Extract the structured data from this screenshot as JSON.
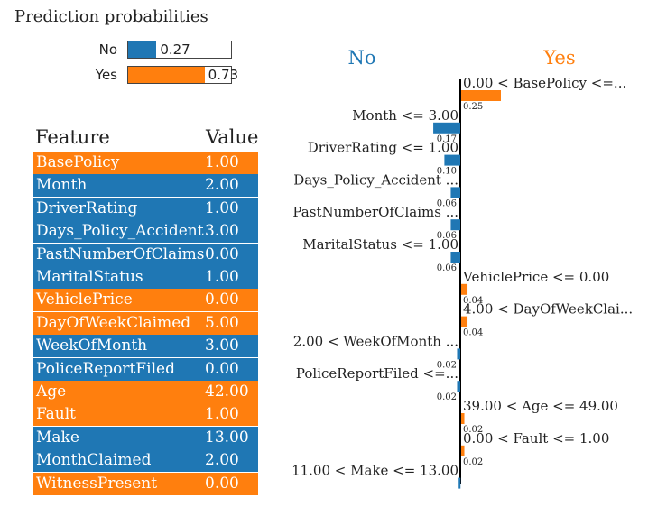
{
  "title": "Prediction probabilities",
  "colors": {
    "no": "#1f77b4",
    "yes": "#ff7f0e"
  },
  "probabilities": [
    {
      "label": "No",
      "value": 0.27,
      "display": "0.27",
      "color": "#1f77b4"
    },
    {
      "label": "Yes",
      "value": 0.73,
      "display": "0.73",
      "color": "#ff7f0e"
    }
  ],
  "explanation": {
    "left_class": "No",
    "right_class": "Yes"
  },
  "chart_data": {
    "type": "bar",
    "orientation": "horizontal-diverging",
    "categories": [
      "0.00 < BasePolicy <=...",
      "Month <= 3.00",
      "DriverRating <= 1.00",
      "Days_Policy_Accident ...",
      "PastNumberOfClaims ...",
      "MaritalStatus <= 1.00",
      "VehiclePrice <= 0.00",
      "4.00 < DayOfWeekClai...",
      "2.00 < WeekOfMonth ...",
      "PoliceReportFiled <=...",
      "39.00 < Age <= 49.00",
      "0.00 < Fault <= 1.00",
      "11.00 < Make <= 13.00"
    ],
    "values": [
      0.25,
      -0.17,
      -0.1,
      -0.06,
      -0.06,
      -0.06,
      0.04,
      0.04,
      -0.02,
      -0.02,
      0.02,
      0.02,
      -0.01
    ],
    "value_labels": [
      "0.25",
      "0.17",
      "0.10",
      "0.06",
      "0.06",
      "0.06",
      "0.04",
      "0.04",
      "0.02",
      "0.02",
      "0.02",
      "0.02",
      ""
    ]
  },
  "feature_table": {
    "header_feature": "Feature",
    "header_value": "Value",
    "rows": [
      {
        "feature": "BasePolicy",
        "value": "1.00",
        "class": "yes"
      },
      {
        "feature": "Month",
        "value": "2.00",
        "class": "no"
      },
      {
        "feature": "DriverRating",
        "value": "1.00",
        "class": "no"
      },
      {
        "feature": "Days_Policy_Accident",
        "value": "3.00",
        "class": "no"
      },
      {
        "feature": "PastNumberOfClaims",
        "value": "0.00",
        "class": "no"
      },
      {
        "feature": "MaritalStatus",
        "value": "1.00",
        "class": "no"
      },
      {
        "feature": "VehiclePrice",
        "value": "0.00",
        "class": "yes"
      },
      {
        "feature": "DayOfWeekClaimed",
        "value": "5.00",
        "class": "yes"
      },
      {
        "feature": "WeekOfMonth",
        "value": "3.00",
        "class": "no"
      },
      {
        "feature": "PoliceReportFiled",
        "value": "0.00",
        "class": "no"
      },
      {
        "feature": "Age",
        "value": "42.00",
        "class": "yes"
      },
      {
        "feature": "Fault",
        "value": "1.00",
        "class": "yes"
      },
      {
        "feature": "Make",
        "value": "13.00",
        "class": "no"
      },
      {
        "feature": "MonthClaimed",
        "value": "2.00",
        "class": "no"
      },
      {
        "feature": "WitnessPresent",
        "value": "0.00",
        "class": "yes"
      }
    ]
  }
}
